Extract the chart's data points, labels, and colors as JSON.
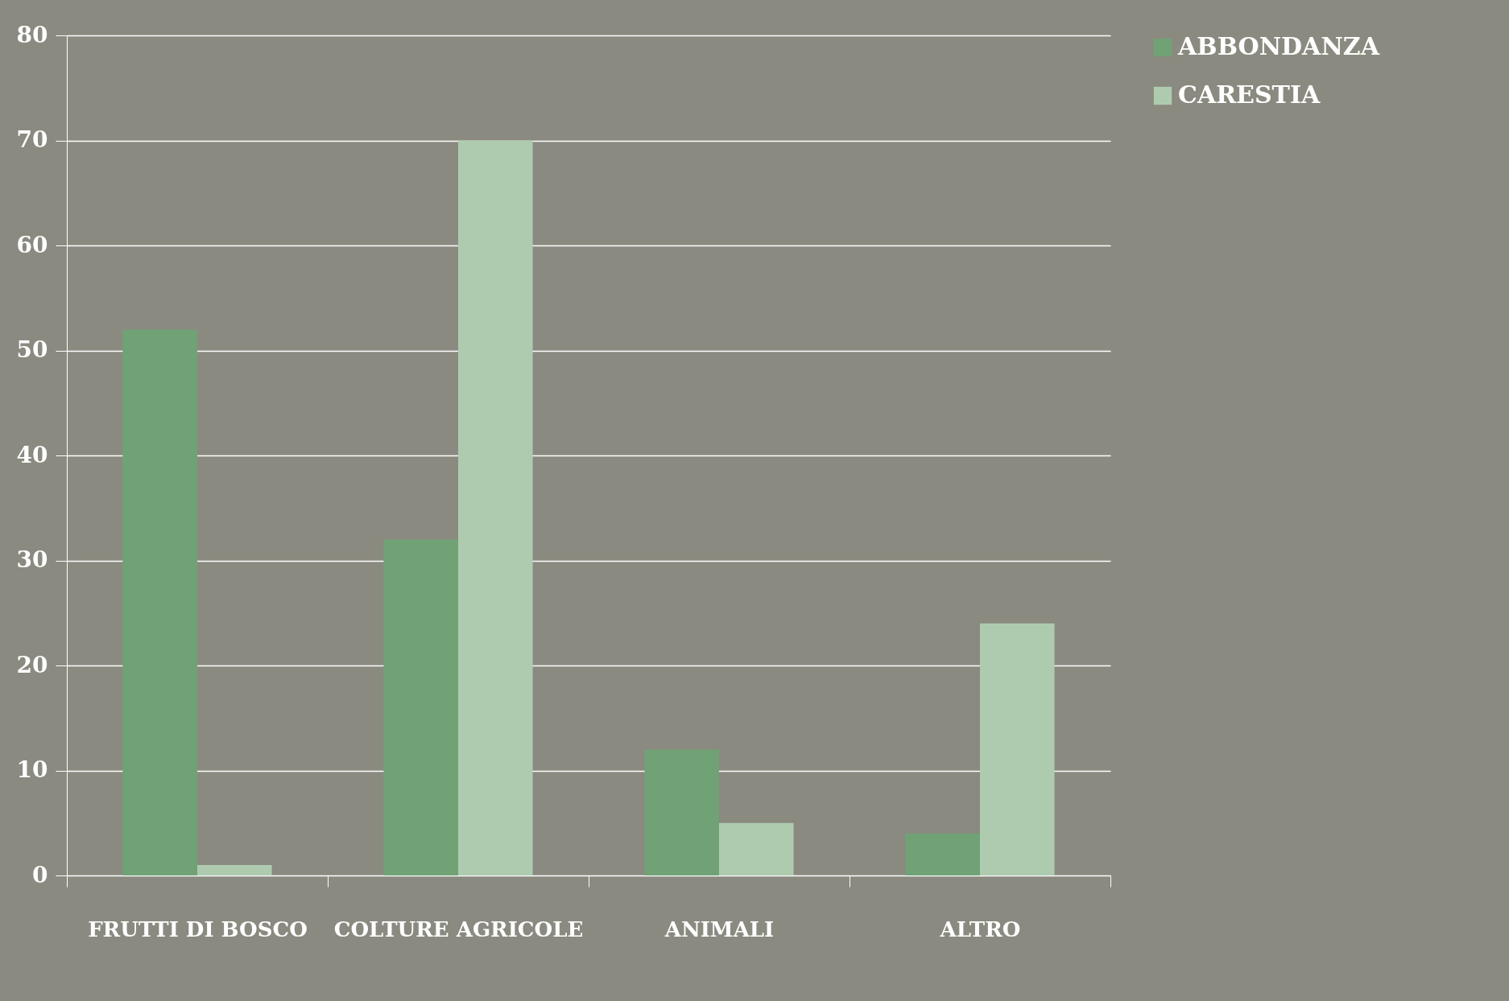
{
  "chart_data": {
    "type": "bar",
    "categories": [
      "FRUTTI DI BOSCO",
      "COLTURE AGRICOLE",
      "ANIMALI",
      "ALTRO"
    ],
    "series": [
      {
        "name": "ABBONDANZA",
        "color": "#70a276",
        "values": [
          52,
          32,
          12,
          4
        ]
      },
      {
        "name": "CARESTIA",
        "color": "#aecbb0",
        "values": [
          1,
          70,
          5,
          24
        ]
      }
    ],
    "ylim": [
      0,
      80
    ],
    "yticks": [
      0,
      10,
      20,
      30,
      40,
      50,
      60,
      70,
      80
    ],
    "grid": "y",
    "legend": "right"
  }
}
